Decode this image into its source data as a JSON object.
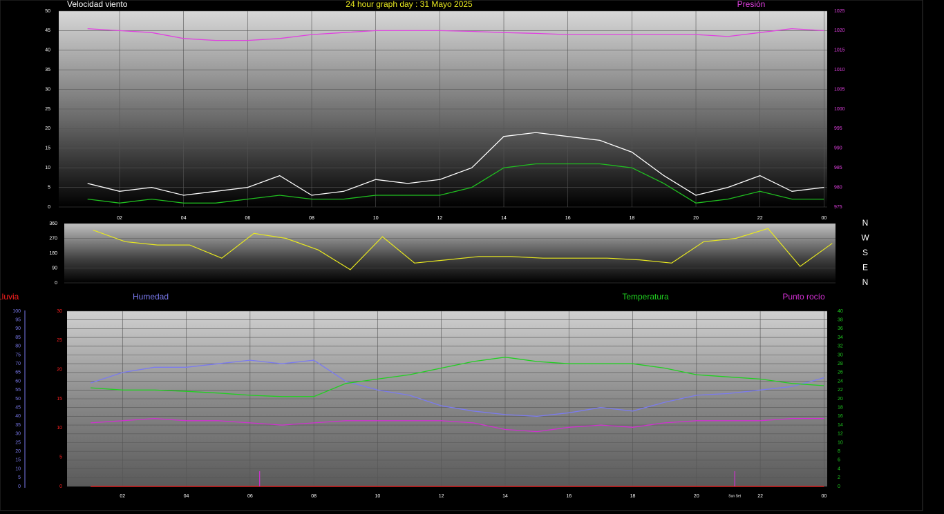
{
  "chart_data": [
    {
      "type": "line",
      "title": "24 hour graph day : 31 Mayo 2025",
      "x": [
        1,
        2,
        3,
        4,
        5,
        6,
        7,
        8,
        9,
        10,
        11,
        12,
        13,
        14,
        15,
        16,
        17,
        18,
        19,
        20,
        21,
        22,
        23,
        24
      ],
      "xlim": [
        0.1,
        24.1
      ],
      "xticks": [
        {
          "value": 2,
          "label": "02"
        },
        {
          "value": 4,
          "label": "04"
        },
        {
          "value": 6,
          "label": "06"
        },
        {
          "value": 8,
          "label": "08"
        },
        10,
        12,
        14,
        16,
        18,
        20,
        22,
        {
          "value": 24,
          "label": "00"
        }
      ],
      "ylim": [
        0,
        50
      ],
      "yticks": [
        0,
        5,
        10,
        15,
        20,
        25,
        30,
        35,
        40,
        45,
        50
      ],
      "y2lim": [
        975,
        1025
      ],
      "y2ticks": [
        975,
        980,
        985,
        990,
        995,
        1000,
        1005,
        1010,
        1015,
        1020,
        1025
      ],
      "axis_colors": {
        "y": "#ffffff",
        "y2": "#e040e0"
      },
      "grid": true,
      "series": [
        {
          "name": "Velocidad viento",
          "color": "#ffffff",
          "values": [
            6,
            4,
            5,
            3,
            4,
            5,
            8,
            3,
            4,
            7,
            6,
            7,
            10,
            18,
            19,
            18,
            17,
            14,
            8,
            3,
            5,
            8,
            4,
            5
          ]
        },
        {
          "color": "#20c020",
          "values": [
            2,
            1,
            2,
            1,
            1,
            2,
            3,
            2,
            2,
            3,
            3,
            3,
            5,
            10,
            11,
            11,
            11,
            10,
            6,
            1,
            2,
            4,
            2,
            2
          ]
        },
        {
          "name": "Presión",
          "color": "#e040e0",
          "axis": "y2",
          "values": [
            1020.5,
            1020,
            1019.5,
            1018,
            1017.5,
            1017.5,
            1018,
            1019,
            1019.5,
            1020,
            1020,
            1020,
            1019.8,
            1019.5,
            1019.3,
            1019,
            1019,
            1019,
            1019,
            1019,
            1018.5,
            1019.5,
            1020.5,
            1020
          ]
        }
      ]
    },
    {
      "type": "line",
      "x": [
        1,
        2,
        3,
        4,
        5,
        6,
        7,
        8,
        9,
        10,
        11,
        12,
        13,
        14,
        15,
        16,
        17,
        18,
        19,
        20,
        21,
        22,
        23,
        24
      ],
      "xlim": [
        0.1,
        24.1
      ],
      "ylim": [
        0,
        360
      ],
      "yticks": [
        0,
        90,
        180,
        270,
        360
      ],
      "y2lim": [
        0,
        360
      ],
      "y2ticks": [
        {
          "value": 360,
          "label": "N"
        },
        {
          "value": 270,
          "label": "W"
        },
        {
          "value": 180,
          "label": "S"
        },
        {
          "value": 90,
          "label": "E"
        },
        {
          "value": 0,
          "label": "N"
        }
      ],
      "axis_colors": {
        "y": "#ffffff",
        "y2": "#ffffff"
      },
      "grid": true,
      "series": [
        {
          "color": "#e8e820",
          "values": [
            320,
            250,
            230,
            230,
            150,
            300,
            270,
            200,
            80,
            280,
            120,
            140,
            160,
            160,
            150,
            150,
            150,
            140,
            120,
            250,
            270,
            330,
            100,
            240
          ]
        }
      ]
    },
    {
      "type": "line",
      "x": [
        1,
        2,
        3,
        4,
        5,
        6,
        7,
        8,
        9,
        10,
        11,
        12,
        13,
        14,
        15,
        16,
        17,
        18,
        19,
        20,
        21,
        22,
        23,
        24
      ],
      "xlim": [
        0.26,
        24.1
      ],
      "xticks": [
        {
          "value": 2,
          "label": "02"
        },
        {
          "value": 4,
          "label": "04"
        },
        {
          "value": 6,
          "label": "06"
        },
        {
          "value": 8,
          "label": "08"
        },
        10,
        12,
        14,
        16,
        18,
        20,
        22,
        {
          "value": 24,
          "label": "00"
        }
      ],
      "ylim": [
        0,
        30
      ],
      "yticks": [
        0,
        5,
        10,
        15,
        20,
        25,
        30
      ],
      "y2lim": [
        0,
        40
      ],
      "y2ticks": [
        0,
        2,
        4,
        6,
        8,
        10,
        12,
        14,
        16,
        18,
        20,
        22,
        24,
        26,
        28,
        30,
        32,
        34,
        36,
        38,
        40
      ],
      "y3lim": [
        0,
        100
      ],
      "y3ticks": [
        0,
        5,
        10,
        15,
        20,
        25,
        30,
        35,
        40,
        45,
        50,
        55,
        60,
        65,
        70,
        75,
        80,
        85,
        90,
        95,
        100
      ],
      "axis_colors": {
        "y": "#ff2020",
        "y2": "#20d020",
        "y3": "#7b7bf0"
      },
      "grid": true,
      "series": [
        {
          "name": "Lluvia",
          "color": "#ff2020",
          "values": [
            0,
            0,
            0,
            0,
            0,
            0,
            0,
            0,
            0,
            0,
            0,
            0,
            0,
            0,
            0,
            0,
            0,
            0,
            0,
            0,
            0,
            0,
            0,
            0
          ]
        },
        {
          "name": "Humedad",
          "color": "#7b7bf0",
          "axis": "y3",
          "values": [
            59,
            65,
            68,
            68,
            70,
            72,
            70,
            72,
            60,
            55,
            52,
            46,
            43,
            41,
            40,
            42,
            45,
            43,
            48,
            52,
            53,
            55,
            57,
            62
          ]
        },
        {
          "name": "Temperatura",
          "color": "#20d020",
          "axis": "y2",
          "values": [
            22.5,
            22,
            22,
            21.7,
            21.3,
            20.8,
            20.5,
            20.5,
            23.5,
            24.5,
            25.5,
            27,
            28.5,
            29.5,
            28.5,
            28,
            28,
            28,
            27,
            25.5,
            25,
            24.5,
            23.5,
            23
          ]
        },
        {
          "name": "Punto rocío",
          "color": "#d030d0",
          "axis": "y2",
          "values": [
            14.5,
            15,
            15.5,
            15,
            15,
            14.5,
            14,
            14.5,
            15,
            15,
            15,
            15,
            14.5,
            13,
            12.5,
            13.5,
            14,
            13.5,
            14.5,
            15,
            15,
            15,
            15.5,
            15.5
          ]
        }
      ],
      "sun_markers": [
        {
          "x": 6.3
        },
        {
          "x": 21.2,
          "label": "Sun Set"
        }
      ]
    }
  ]
}
